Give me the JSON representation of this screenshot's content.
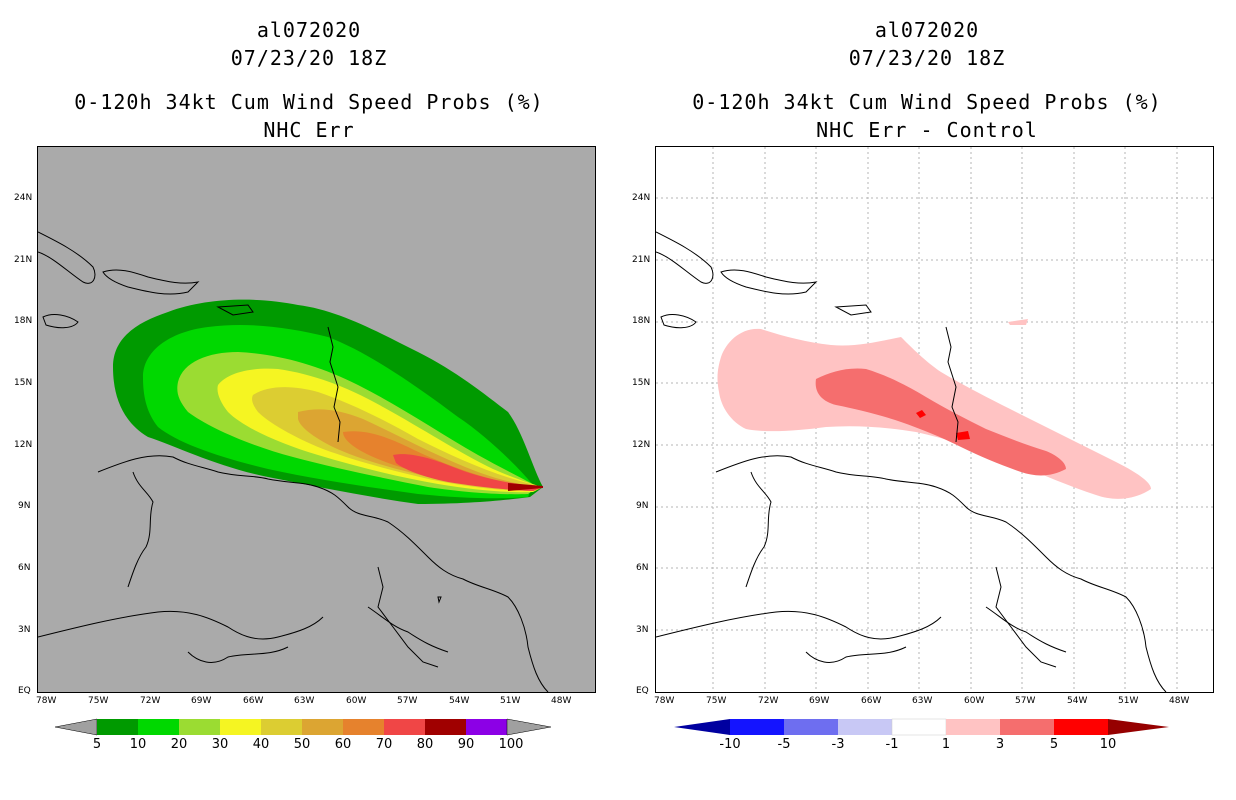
{
  "left": {
    "title1": "al072020",
    "title2": "07/23/20 18Z",
    "title3": "0-120h 34kt Cum Wind Speed Probs (%)",
    "title4": "NHC Err",
    "map_background": "#aaaaaa",
    "colorbar": {
      "colors": [
        "#009a00",
        "#00d800",
        "#9bdc32",
        "#f5f522",
        "#dccd32",
        "#dca532",
        "#e6822d",
        "#f04646",
        "#a00000",
        "#8c00e6"
      ],
      "labels": [
        "5",
        "10",
        "20",
        "30",
        "40",
        "50",
        "60",
        "70",
        "80",
        "90",
        "100"
      ]
    }
  },
  "right": {
    "title1": "al072020",
    "title2": "07/23/20 18Z",
    "title3": "0-120h 34kt Cum Wind Speed Probs (%)",
    "title4": "NHC Err - Control",
    "map_background": "#ffffff",
    "colorbar": {
      "colors": [
        "#0000a0",
        "#1414ff",
        "#6e6ef0",
        "#c8c8f5",
        "#ffffff",
        "#ffc3c3",
        "#f56e6e",
        "#ff0000",
        "#960000"
      ],
      "labels": [
        "-10",
        "-5",
        "-3",
        "-1",
        "1",
        "3",
        "5",
        "10"
      ]
    }
  },
  "axes": {
    "lon_labels": [
      "78W",
      "75W",
      "72W",
      "69W",
      "66W",
      "63W",
      "60W",
      "57W",
      "54W",
      "51W",
      "48W"
    ],
    "lat_labels": [
      "EQ",
      "3N",
      "6N",
      "9N",
      "12N",
      "15N",
      "18N",
      "21N",
      "24N"
    ]
  }
}
